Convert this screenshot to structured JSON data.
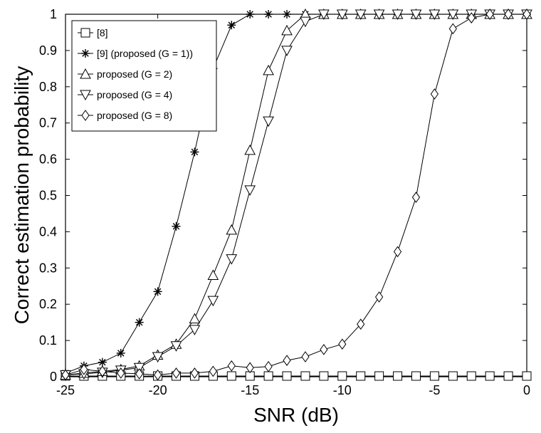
{
  "chart_data": {
    "type": "line",
    "xlabel": "SNR (dB)",
    "ylabel": "Correct estimation probability",
    "xlim": [
      -25,
      0
    ],
    "ylim": [
      0,
      1
    ],
    "xticks": [
      -25,
      -20,
      -15,
      -10,
      -5,
      0
    ],
    "yticks": [
      0,
      0.1,
      0.2,
      0.3,
      0.4,
      0.5,
      0.6,
      0.7,
      0.8,
      0.9,
      1
    ],
    "x": [
      -25,
      -24,
      -23,
      -22,
      -21,
      -20,
      -19,
      -18,
      -17,
      -16,
      -15,
      -14,
      -13,
      -12,
      -11,
      -10,
      -9,
      -8,
      -7,
      -6,
      -5,
      -4,
      -3,
      -2,
      -1,
      0
    ],
    "legend_position": "top-left",
    "grid": false,
    "series": [
      {
        "name": "[8]",
        "marker": "square",
        "values": [
          0.002,
          0.002,
          0.002,
          0.002,
          0.002,
          0.002,
          0.002,
          0.002,
          0.002,
          0.002,
          0.002,
          0.002,
          0.002,
          0.002,
          0.002,
          0.002,
          0.002,
          0.002,
          0.002,
          0.002,
          0.002,
          0.002,
          0.002,
          0.002,
          0.002,
          0.002
        ]
      },
      {
        "name": "[9] (proposed (G = 1))",
        "marker": "star",
        "values": [
          0.01,
          0.03,
          0.04,
          0.065,
          0.15,
          0.235,
          0.415,
          0.62,
          0.85,
          0.97,
          1,
          1,
          1,
          1,
          1,
          1,
          1,
          1,
          1,
          1,
          1,
          1,
          1,
          1,
          1,
          1
        ]
      },
      {
        "name": "proposed (G = 2)",
        "marker": "triangle-up",
        "values": [
          0.005,
          0.01,
          0.015,
          0.02,
          0.03,
          0.06,
          0.09,
          0.16,
          0.28,
          0.405,
          0.625,
          0.845,
          0.955,
          1,
          1,
          1,
          1,
          1,
          1,
          1,
          1,
          1,
          1,
          1,
          1,
          1
        ]
      },
      {
        "name": "proposed (G = 4)",
        "marker": "triangle-down",
        "values": [
          0.005,
          0.008,
          0.012,
          0.018,
          0.025,
          0.055,
          0.085,
          0.13,
          0.21,
          0.325,
          0.515,
          0.705,
          0.9,
          0.98,
          1,
          1,
          1,
          1,
          1,
          1,
          1,
          1,
          1,
          1,
          1,
          1
        ]
      },
      {
        "name": "proposed (G = 8)",
        "marker": "diamond",
        "values": [
          0.005,
          0.02,
          0.015,
          0.01,
          0.008,
          0.005,
          0.01,
          0.01,
          0.015,
          0.03,
          0.025,
          0.028,
          0.045,
          0.055,
          0.075,
          0.09,
          0.145,
          0.22,
          0.345,
          0.495,
          0.78,
          0.96,
          0.99,
          1,
          1,
          1
        ]
      }
    ]
  }
}
